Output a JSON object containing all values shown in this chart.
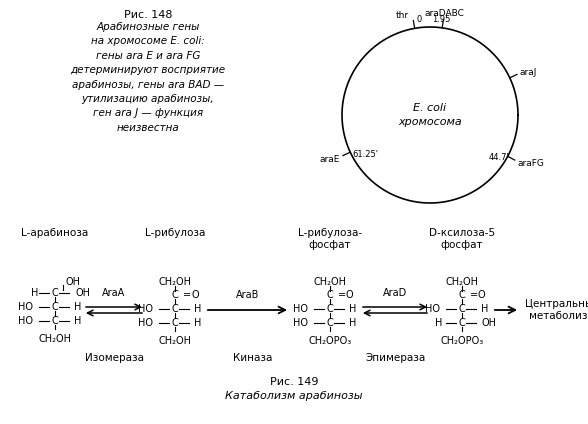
{
  "fig_title_top": "Рис. 148",
  "fig_text_left": "Арабинозные гены\nна хромосоме E. coli:\nгены ara E и ara FG\nдетерминируют восприятие\nарабинозы, гены ara BAD —\nутилизацию арабинозы,\nген ara J — функция\nнеизвестна",
  "circle_label": "E. coli\nхромосома",
  "bottom_title": "Рис. 149",
  "bottom_subtitle": "Катаболизм арабинозы",
  "molecule_titles": [
    "L-арабиноза",
    "L-рибулоза",
    "L-рибулоза-\nфосфат",
    "D-ксилоза-5\nфосфат"
  ],
  "enzyme_labels": [
    "Изомераза",
    "Киназа",
    "Эпимераза"
  ],
  "enzyme_genes": [
    "AraA",
    "AraB",
    "AraD"
  ],
  "final_label": "Центральный\nметаболизм",
  "bg_color": "#ffffff",
  "text_color": "#000000"
}
